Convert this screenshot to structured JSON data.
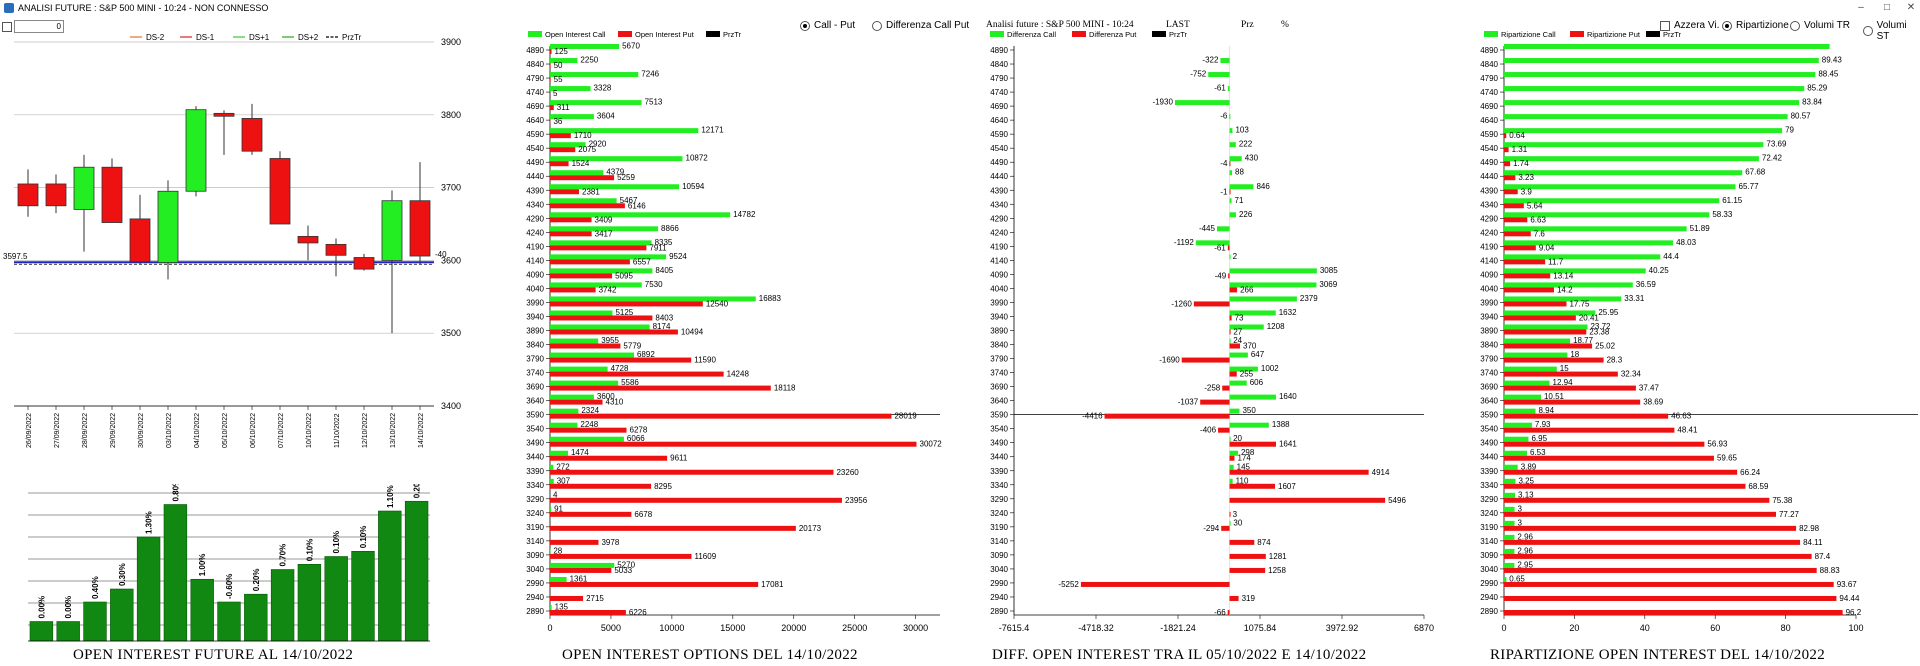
{
  "window": {
    "title": "ANALISI FUTURE : S&P 500 MINI - 10:24 - NON CONNESSO"
  },
  "topbar": {
    "number_value": "0"
  },
  "options_radios": {
    "call_put": "Call - Put",
    "diff_call_put": "Differenza Call Put"
  },
  "ripart_options": {
    "azzera": "Azzera Vi.",
    "ripartizione": "Ripartizione",
    "volumi_tr": "Volumi TR",
    "volumi_st": "Volumi ST"
  },
  "diff_header": {
    "title": "Analisi future : S&P 500 MINI - 10:24",
    "last": "LAST",
    "prz": "Prz",
    "pct": "%"
  },
  "titles": {
    "future": "OPEN INTEREST FUTURE AL 14/10/2022",
    "options": "OPEN INTEREST OPTIONS DEL 14/10/2022",
    "diff": "DIFF. OPEN INTEREST TRA IL 05/10/2022 E 14/10/2022",
    "ripart": "RIPARTIZIONE OPEN INTEREST DEL 14/10/2022"
  },
  "colors": {
    "green": "#22ee22",
    "red": "#ee1111",
    "candle_green": "#22ee22",
    "candle_red": "#ee1111",
    "bar_dark_green": "#118811",
    "blue_line": "#2222cc"
  },
  "chart_data": [
    {
      "type": "candlestick",
      "legend": [
        {
          "label": "DS-2",
          "color": "#e07030"
        },
        {
          "label": "DS-1",
          "color": "#dd2222"
        },
        {
          "label": "DS+1",
          "color": "#33cc33"
        },
        {
          "label": "DS+2",
          "color": "#22aa22"
        },
        {
          "label": "PrzTr",
          "color": "#000000"
        }
      ],
      "ylim": [
        3400,
        3900
      ],
      "yticks": [
        "3900",
        "3800",
        "3700",
        "3600",
        "3500",
        "3400"
      ],
      "price_label": "3597.5",
      "price": 3597.5,
      "right_label": "-40",
      "dates": [
        "26/09/2022",
        "27/09/2022",
        "28/09/2022",
        "29/09/2022",
        "30/09/2022",
        "03/10/2022",
        "04/10/2022",
        "05/10/2022",
        "06/10/2022",
        "07/10/2022",
        "10/10/2022",
        "11/10/2022",
        "12/10/2022",
        "13/10/2022",
        "14/10/2022"
      ],
      "candles": [
        {
          "o": 3705,
          "h": 3725,
          "l": 3660,
          "c": 3675
        },
        {
          "o": 3705,
          "h": 3718,
          "l": 3665,
          "c": 3675
        },
        {
          "o": 3670,
          "h": 3745,
          "l": 3612,
          "c": 3728
        },
        {
          "o": 3728,
          "h": 3740,
          "l": 3655,
          "c": 3652
        },
        {
          "o": 3657,
          "h": 3690,
          "l": 3595,
          "c": 3598
        },
        {
          "o": 3597,
          "h": 3710,
          "l": 3574,
          "c": 3695
        },
        {
          "o": 3695,
          "h": 3812,
          "l": 3688,
          "c": 3807
        },
        {
          "o": 3802,
          "h": 3806,
          "l": 3745,
          "c": 3798
        },
        {
          "o": 3795,
          "h": 3815,
          "l": 3745,
          "c": 3750
        },
        {
          "o": 3740,
          "h": 3750,
          "l": 3650,
          "c": 3650
        },
        {
          "o": 3633,
          "h": 3648,
          "l": 3600,
          "c": 3624
        },
        {
          "o": 3622,
          "h": 3630,
          "l": 3578,
          "c": 3607
        },
        {
          "o": 3604,
          "h": 3609,
          "l": 3586,
          "c": 3588
        },
        {
          "o": 3600,
          "h": 3696,
          "l": 3500,
          "c": 3682
        },
        {
          "o": 3682,
          "h": 3735,
          "l": 3595,
          "c": 3606
        }
      ]
    },
    {
      "type": "bar",
      "title": "OPEN INTEREST FUTURE AL 14/10/2022",
      "labels": [
        "0.00%",
        "0.00%",
        "0.40%",
        "0.30%",
        "1.30%",
        "0.80%",
        "1.00%",
        "-0.60%",
        "0.20%",
        "0.70%",
        "0.10%",
        "0.10%",
        "0.10%",
        "1.10%",
        "0.20%"
      ],
      "values": [
        3,
        3,
        6,
        8,
        16,
        21,
        9.5,
        6,
        7.2,
        11,
        11.8,
        13,
        13.8,
        20,
        21.5
      ]
    },
    {
      "type": "bar",
      "orientation": "horizontal",
      "title": "OPEN INTEREST OPTIONS DEL 14/10/2022",
      "legend": [
        "Open Interest Call",
        "Open Interest Put",
        "PrzTr"
      ],
      "xlim": [
        0,
        32000
      ],
      "xticks": [
        0,
        5000,
        10000,
        15000,
        20000,
        25000,
        30000
      ],
      "strikes": [
        4890,
        4840,
        4790,
        4740,
        4690,
        4640,
        4590,
        4540,
        4490,
        4440,
        4390,
        4340,
        4290,
        4240,
        4190,
        4140,
        4090,
        4040,
        3990,
        3940,
        3890,
        3840,
        3790,
        3740,
        3690,
        3640,
        3590,
        3540,
        3490,
        3440,
        3390,
        3340,
        3290,
        3240,
        3190,
        3140,
        3090,
        3040,
        2990,
        2940,
        2890
      ],
      "series": [
        {
          "name": "Open Interest Call",
          "values": [
            5670,
            2250,
            7246,
            3328,
            7513,
            3604,
            12171,
            2920,
            10872,
            4379,
            10594,
            5467,
            14782,
            8866,
            8335,
            9524,
            8405,
            7530,
            16883,
            5125,
            8174,
            3955,
            6892,
            4728,
            5586,
            3600,
            2324,
            2248,
            6066,
            1474,
            272,
            307,
            4,
            91,
            0,
            0,
            28,
            5270,
            1361,
            0,
            135
          ]
        },
        {
          "name": "Open Interest Put",
          "values": [
            125,
            50,
            55,
            5,
            311,
            36,
            1710,
            2075,
            1524,
            5259,
            2381,
            6146,
            3409,
            3417,
            7911,
            6557,
            5095,
            3742,
            12540,
            8403,
            10494,
            5779,
            11590,
            14248,
            18118,
            4310,
            28019,
            6278,
            30072,
            9611,
            23260,
            8295,
            23956,
            6678,
            20173,
            3978,
            11609,
            5033,
            17081,
            2715,
            6226
          ]
        }
      ],
      "price_strike": 3590
    },
    {
      "type": "bar",
      "orientation": "horizontal",
      "title": "DIFF. OPEN INTEREST TRA IL 05/10/2022 E 14/10/2022",
      "legend": [
        "Differenza Call",
        "Differenza Put",
        "PrzTr"
      ],
      "xlim": [
        -7615.4,
        6870
      ],
      "xticks": [
        "-7615.4",
        "-4718.32",
        "-1821.24",
        "1075.84",
        "3972.92",
        "6870"
      ],
      "strikes": [
        4890,
        4840,
        4790,
        4740,
        4690,
        4640,
        4590,
        4540,
        4490,
        4440,
        4390,
        4340,
        4290,
        4240,
        4190,
        4140,
        4090,
        4040,
        3990,
        3940,
        3890,
        3840,
        3790,
        3740,
        3690,
        3640,
        3590,
        3540,
        3490,
        3440,
        3390,
        3340,
        3290,
        3240,
        3190,
        3140,
        3090,
        3040,
        2990,
        2940,
        2890
      ],
      "call_diff": [
        0,
        -322,
        -752,
        -61,
        -1930,
        -6,
        103,
        222,
        430,
        88,
        846,
        71,
        226,
        -445,
        -1192,
        2,
        3085,
        3069,
        2379,
        1632,
        1208,
        24,
        647,
        1002,
        606,
        1640,
        350,
        1388,
        20,
        298,
        145,
        110,
        0,
        0,
        30,
        0,
        0,
        0,
        0,
        0,
        0
      ],
      "put_diff": [
        0,
        0,
        0,
        0,
        0,
        0,
        0,
        0,
        -4,
        0,
        -1,
        0,
        0,
        0,
        -61,
        0,
        -49,
        266,
        -1260,
        73,
        27,
        370,
        -1690,
        255,
        -258,
        -1037,
        -4416,
        -406,
        1641,
        174,
        4914,
        1607,
        5496,
        3,
        -294,
        874,
        1281,
        1258,
        -5252,
        319,
        -66
      ],
      "call_labels": [
        "",
        "-322",
        "-752",
        "-61",
        "-1930",
        "-6",
        "103",
        "222",
        "430",
        "88",
        "846",
        "71",
        "226",
        "-445",
        "-1192",
        "2",
        "3085",
        "3069",
        "2379",
        "1632",
        "1208",
        "24",
        "647",
        "1002",
        "606",
        "1640",
        "350",
        "1388",
        "20",
        "298",
        "145",
        "110",
        "",
        "",
        "30",
        "",
        "",
        "",
        "",
        "",
        ""
      ],
      "put_labels": [
        "",
        "",
        "",
        "",
        "",
        "",
        "",
        "",
        "-4",
        "",
        "-1",
        "",
        "",
        "",
        "-61",
        "",
        "-49",
        "266",
        "-1260",
        "73",
        "27",
        "370",
        "-1690",
        "255",
        "-258",
        "-1037",
        "-4416",
        "-406",
        "1641",
        "174",
        "4914",
        "1607",
        "5496",
        "3",
        "-294",
        "874",
        "1281",
        "1258",
        "-5252",
        "319",
        "-66"
      ],
      "price_strike": 3590
    },
    {
      "type": "bar",
      "orientation": "horizontal",
      "title": "RIPARTIZIONE OPEN INTEREST DEL 14/10/2022",
      "legend": [
        "Ripartizione Call",
        "Ripartizione Put",
        "PrzTr"
      ],
      "xlim": [
        0,
        100
      ],
      "xticks": [
        0,
        20,
        40,
        60,
        80,
        100
      ],
      "strikes": [
        4890,
        4840,
        4790,
        4740,
        4690,
        4640,
        4590,
        4540,
        4490,
        4440,
        4390,
        4340,
        4290,
        4240,
        4190,
        4140,
        4090,
        4040,
        3990,
        3940,
        3890,
        3840,
        3790,
        3740,
        3690,
        3640,
        3590,
        3540,
        3490,
        3440,
        3390,
        3340,
        3290,
        3240,
        3190,
        3140,
        3090,
        3040,
        2990,
        2940,
        2890
      ],
      "put_pct": [
        0,
        0,
        0,
        0,
        0,
        0,
        0.64,
        1.31,
        1.74,
        3.23,
        3.9,
        5.64,
        6.63,
        7.6,
        9.04,
        11.7,
        13.14,
        14.2,
        17.75,
        20.41,
        23.38,
        25.02,
        28.3,
        32.34,
        37.47,
        38.69,
        46.63,
        48.41,
        56.93,
        59.65,
        66.24,
        68.59,
        75.38,
        77.27,
        82.98,
        84.11,
        87.4,
        88.83,
        93.67,
        94.44,
        96.2
      ],
      "call_pct": [
        92.5,
        89.43,
        88.45,
        85.29,
        83.84,
        80.57,
        79,
        73.69,
        72.42,
        67.68,
        65.77,
        61.15,
        58.33,
        51.89,
        48.03,
        44.4,
        40.25,
        36.59,
        33.31,
        25.95,
        23.72,
        18.77,
        18,
        15,
        12.94,
        10.51,
        8.94,
        7.93,
        6.95,
        6.53,
        3.89,
        3.25,
        3.13,
        3,
        3,
        2.96,
        2.96,
        2.95,
        0.65,
        0,
        0
      ],
      "call_labels": [
        "",
        "89.43",
        "88.45",
        "85.29",
        "83.84",
        "80.57",
        "79",
        "73.69",
        "72.42",
        "67.68",
        "65.77",
        "61.15",
        "58.33",
        "51.89",
        "48.03",
        "44.4",
        "40.25",
        "36.59",
        "33.31",
        "25.95",
        "23.72",
        "18.77",
        "18",
        "15",
        "12.94",
        "10.51",
        "8.94",
        "7.93",
        "6.95",
        "6.53",
        "3.89",
        "3.25",
        "3.13",
        "3",
        "3",
        "2.96",
        "2.96",
        "2.95",
        "0.65",
        "",
        ""
      ],
      "put_labels": [
        "",
        "",
        "",
        "",
        "",
        "",
        "0.64",
        "1.31",
        "1.74",
        "3.23",
        "3.9",
        "5.64",
        "6.63",
        "7.6",
        "9.04",
        "11.7",
        "13.14",
        "14.2",
        "17.75",
        "20.41",
        "23.38",
        "25.02",
        "28.3",
        "32.34",
        "37.47",
        "38.69",
        "46.63",
        "48.41",
        "56.93",
        "59.65",
        "66.24",
        "68.59",
        "75.38",
        "77.27",
        "82.98",
        "84.11",
        "87.4",
        "88.83",
        "93.67",
        "94.44",
        "96.2"
      ],
      "price_strike": 3590
    }
  ]
}
